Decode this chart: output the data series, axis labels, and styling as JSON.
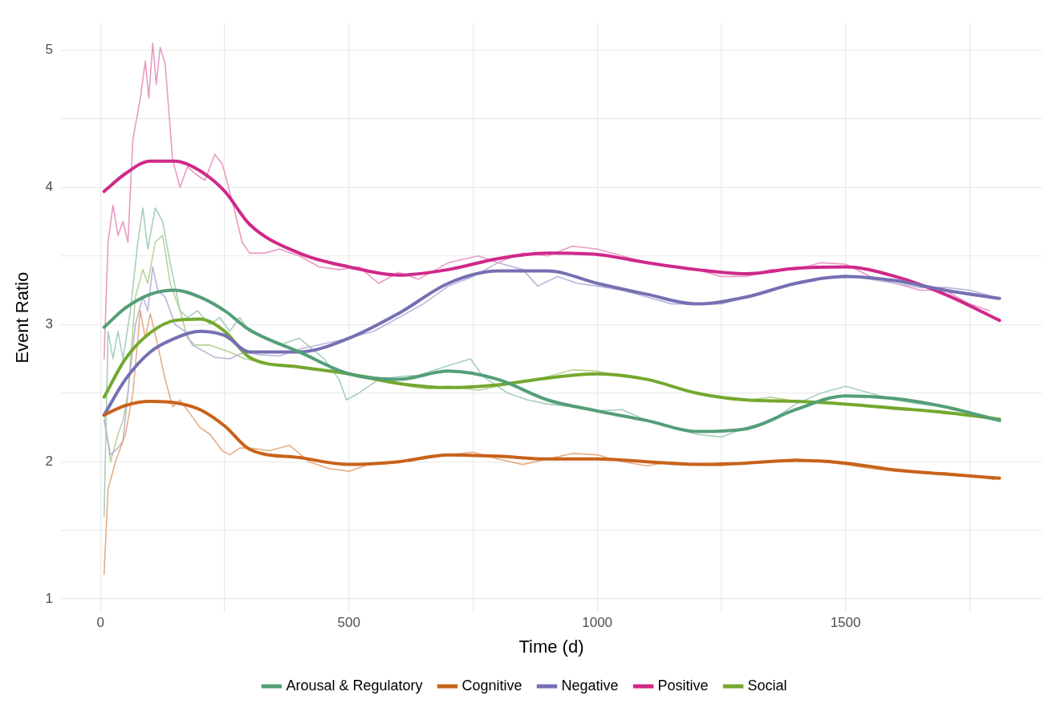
{
  "chart_data": {
    "type": "line",
    "xlabel": "Time (d)",
    "ylabel": "Event Ratio",
    "xlim": [
      -80,
      1895
    ],
    "ylim": [
      0.9,
      5.2
    ],
    "xticks": [
      0,
      {
        "value": 250,
        "label": null
      },
      500,
      {
        "value": 750,
        "label": null
      },
      1000,
      {
        "value": 1250,
        "label": null
      },
      1500,
      {
        "value": 1750,
        "label": null
      }
    ],
    "yticks": [
      1,
      {
        "value": 1.5,
        "label": null
      },
      2,
      {
        "value": 2.5,
        "label": null
      },
      3,
      {
        "value": 3.5,
        "label": null
      },
      4,
      {
        "value": 4.5,
        "label": null
      },
      5
    ],
    "grid": true,
    "legend": "bottom",
    "marker": "none",
    "line_style": "solid",
    "series": [
      {
        "color": "#a8cfbb",
        "x": [
          7,
          15,
          25,
          35,
          45,
          60,
          75,
          85,
          95,
          110,
          125,
          140,
          160,
          175,
          195,
          220,
          240,
          260,
          280,
          300,
          330,
          360,
          400,
          450,
          480,
          495,
          520,
          560,
          600,
          640,
          700,
          745,
          770,
          820,
          860,
          900,
          950,
          1000,
          1050,
          1100,
          1150,
          1200,
          1250,
          1300,
          1350,
          1400,
          1450,
          1500,
          1550,
          1600,
          1650,
          1700,
          1750,
          1800
        ],
        "values": [
          1.6,
          2.95,
          2.75,
          2.95,
          2.75,
          3.1,
          3.6,
          3.85,
          3.55,
          3.85,
          3.75,
          3.45,
          3.1,
          3.05,
          3.1,
          3.0,
          3.05,
          2.95,
          3.05,
          2.95,
          2.9,
          2.85,
          2.9,
          2.75,
          2.6,
          2.45,
          2.5,
          2.6,
          2.62,
          2.63,
          2.7,
          2.75,
          2.62,
          2.5,
          2.45,
          2.42,
          2.4,
          2.37,
          2.38,
          2.3,
          2.25,
          2.2,
          2.18,
          2.25,
          2.3,
          2.42,
          2.5,
          2.55,
          2.5,
          2.45,
          2.42,
          2.4,
          2.35,
          2.32
        ]
      },
      {
        "color": "#e6ad85",
        "x": [
          7,
          15,
          30,
          50,
          65,
          80,
          90,
          100,
          115,
          130,
          145,
          160,
          180,
          200,
          220,
          245,
          260,
          280,
          300,
          340,
          380,
          420,
          460,
          500,
          540,
          600,
          650,
          700,
          750,
          800,
          850,
          900,
          950,
          1000,
          1050,
          1100,
          1150,
          1200,
          1250,
          1300,
          1350,
          1400,
          1450,
          1500,
          1550,
          1600,
          1650,
          1700,
          1750,
          1800
        ],
        "values": [
          1.18,
          1.8,
          2.0,
          2.2,
          2.5,
          3.1,
          2.9,
          3.08,
          2.85,
          2.6,
          2.4,
          2.45,
          2.35,
          2.25,
          2.2,
          2.08,
          2.05,
          2.1,
          2.1,
          2.08,
          2.12,
          2.0,
          1.95,
          1.93,
          1.98,
          2.0,
          2.02,
          2.05,
          2.07,
          2.02,
          1.98,
          2.02,
          2.06,
          2.05,
          2.0,
          1.97,
          2.0,
          1.98,
          1.97,
          1.99,
          2.0,
          2.02,
          2.0,
          1.98,
          1.95,
          1.93,
          1.92,
          1.92,
          1.9,
          1.87
        ]
      },
      {
        "color": "#b8b5da",
        "x": [
          7,
          20,
          35,
          45,
          55,
          70,
          85,
          95,
          105,
          115,
          130,
          150,
          170,
          185,
          200,
          230,
          260,
          290,
          320,
          360,
          400,
          450,
          500,
          550,
          600,
          650,
          700,
          750,
          800,
          850,
          880,
          920,
          960,
          1000,
          1050,
          1100,
          1150,
          1200,
          1250,
          1300,
          1350,
          1400,
          1450,
          1500,
          1550,
          1600,
          1650,
          1700,
          1750,
          1800
        ],
        "values": [
          2.3,
          2.05,
          2.1,
          2.15,
          2.5,
          3.0,
          3.2,
          3.1,
          3.42,
          3.25,
          3.2,
          3.0,
          2.95,
          2.85,
          2.82,
          2.76,
          2.75,
          2.8,
          2.78,
          2.77,
          2.82,
          2.86,
          2.9,
          2.95,
          3.05,
          3.15,
          3.28,
          3.35,
          3.45,
          3.4,
          3.28,
          3.35,
          3.3,
          3.28,
          3.25,
          3.2,
          3.15,
          3.15,
          3.15,
          3.2,
          3.25,
          3.3,
          3.34,
          3.36,
          3.33,
          3.3,
          3.27,
          3.27,
          3.25,
          3.2
        ]
      },
      {
        "color": "#e99ac4",
        "x": [
          7,
          15,
          25,
          35,
          45,
          55,
          65,
          80,
          90,
          97,
          105,
          112,
          120,
          130,
          145,
          160,
          175,
          190,
          210,
          230,
          245,
          265,
          285,
          300,
          330,
          360,
          400,
          440,
          480,
          520,
          560,
          600,
          640,
          700,
          760,
          800,
          850,
          900,
          950,
          1000,
          1050,
          1100,
          1150,
          1200,
          1250,
          1300,
          1350,
          1400,
          1450,
          1500,
          1550,
          1600,
          1650,
          1700,
          1750,
          1790
        ],
        "values": [
          2.75,
          3.6,
          3.87,
          3.65,
          3.75,
          3.6,
          4.35,
          4.65,
          4.92,
          4.65,
          5.05,
          4.75,
          5.02,
          4.9,
          4.2,
          4.0,
          4.15,
          4.1,
          4.05,
          4.24,
          4.17,
          3.9,
          3.6,
          3.52,
          3.52,
          3.55,
          3.5,
          3.42,
          3.4,
          3.42,
          3.3,
          3.38,
          3.33,
          3.45,
          3.5,
          3.45,
          3.52,
          3.5,
          3.57,
          3.55,
          3.5,
          3.45,
          3.42,
          3.4,
          3.35,
          3.35,
          3.4,
          3.4,
          3.45,
          3.44,
          3.35,
          3.3,
          3.25,
          3.25,
          3.15,
          3.1
        ]
      },
      {
        "color": "#b7d494",
        "x": [
          7,
          20,
          35,
          45,
          55,
          70,
          85,
          95,
          110,
          125,
          140,
          160,
          175,
          190,
          220,
          260,
          290,
          330,
          380,
          430,
          480,
          530,
          580,
          620,
          660,
          700,
          760,
          800,
          850,
          900,
          950,
          1000,
          1050,
          1100,
          1150,
          1200,
          1250,
          1300,
          1350,
          1400,
          1450,
          1500,
          1550,
          1600,
          1650,
          1700,
          1750,
          1800
        ],
        "values": [
          2.35,
          2.0,
          2.2,
          2.3,
          2.5,
          3.2,
          3.4,
          3.3,
          3.6,
          3.65,
          3.3,
          3.1,
          2.9,
          2.85,
          2.85,
          2.8,
          2.75,
          2.72,
          2.7,
          2.68,
          2.65,
          2.63,
          2.6,
          2.55,
          2.53,
          2.55,
          2.52,
          2.55,
          2.58,
          2.62,
          2.67,
          2.66,
          2.62,
          2.6,
          2.55,
          2.5,
          2.47,
          2.45,
          2.47,
          2.44,
          2.43,
          2.42,
          2.4,
          2.38,
          2.37,
          2.35,
          2.34,
          2.32
        ]
      },
      {
        "name": "Arousal & Regulatory",
        "color": "#549e78",
        "x": [
          7,
          50,
          100,
          150,
          200,
          250,
          300,
          400,
          500,
          600,
          700,
          800,
          900,
          1000,
          1100,
          1200,
          1300,
          1400,
          1500,
          1600,
          1700,
          1810
        ],
        "values": [
          2.98,
          3.12,
          3.22,
          3.25,
          3.2,
          3.1,
          2.96,
          2.8,
          2.64,
          2.6,
          2.66,
          2.6,
          2.45,
          2.37,
          2.3,
          2.22,
          2.24,
          2.38,
          2.48,
          2.46,
          2.4,
          2.3
        ]
      },
      {
        "name": "Cognitive",
        "color": "#c8621a",
        "x": [
          7,
          50,
          100,
          150,
          200,
          250,
          300,
          400,
          500,
          600,
          700,
          800,
          900,
          1000,
          1100,
          1200,
          1300,
          1400,
          1500,
          1600,
          1700,
          1810
        ],
        "values": [
          2.34,
          2.41,
          2.44,
          2.43,
          2.38,
          2.26,
          2.09,
          2.03,
          1.98,
          2.0,
          2.05,
          2.04,
          2.02,
          2.02,
          2.0,
          1.98,
          1.99,
          2.01,
          1.99,
          1.94,
          1.91,
          1.88
        ]
      },
      {
        "name": "Negative",
        "color": "#7570b3",
        "x": [
          7,
          50,
          100,
          150,
          200,
          250,
          300,
          400,
          500,
          600,
          700,
          800,
          900,
          1000,
          1100,
          1200,
          1300,
          1400,
          1500,
          1600,
          1700,
          1810
        ],
        "values": [
          2.34,
          2.6,
          2.8,
          2.9,
          2.95,
          2.92,
          2.8,
          2.8,
          2.9,
          3.08,
          3.3,
          3.39,
          3.39,
          3.3,
          3.22,
          3.15,
          3.2,
          3.3,
          3.35,
          3.32,
          3.25,
          3.19
        ]
      },
      {
        "name": "Positive",
        "color": "#d0288a",
        "x": [
          7,
          50,
          100,
          150,
          200,
          250,
          300,
          400,
          500,
          600,
          700,
          800,
          900,
          1000,
          1100,
          1200,
          1300,
          1400,
          1500,
          1600,
          1700,
          1810
        ],
        "values": [
          3.97,
          4.1,
          4.19,
          4.19,
          4.12,
          3.97,
          3.73,
          3.52,
          3.42,
          3.36,
          3.4,
          3.48,
          3.52,
          3.51,
          3.45,
          3.4,
          3.37,
          3.41,
          3.42,
          3.35,
          3.22,
          3.03
        ]
      },
      {
        "name": "Social",
        "color": "#74a82e",
        "x": [
          7,
          50,
          100,
          150,
          200,
          250,
          300,
          400,
          500,
          600,
          700,
          800,
          900,
          1000,
          1100,
          1200,
          1300,
          1400,
          1500,
          1600,
          1700,
          1810
        ],
        "values": [
          2.47,
          2.75,
          2.94,
          3.03,
          3.04,
          2.95,
          2.76,
          2.69,
          2.64,
          2.57,
          2.54,
          2.56,
          2.61,
          2.64,
          2.6,
          2.5,
          2.45,
          2.44,
          2.42,
          2.39,
          2.36,
          2.31
        ]
      }
    ]
  }
}
